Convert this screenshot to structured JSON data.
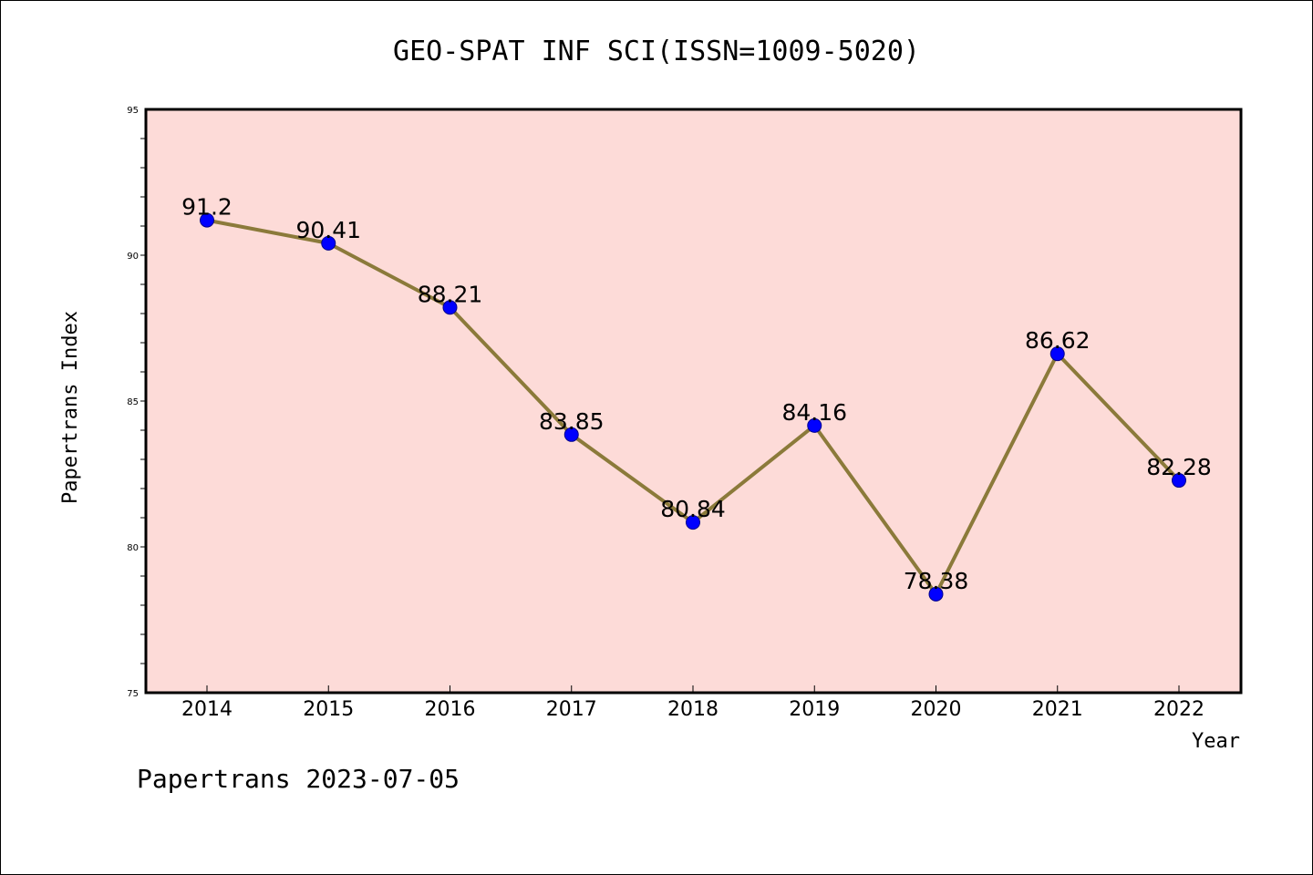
{
  "chart_data": {
    "type": "line",
    "title": "GEO-SPAT INF SCI(ISSN=1009-5020)",
    "xlabel": "Year",
    "ylabel": "Papertrans Index",
    "categories": [
      "2014",
      "2015",
      "2016",
      "2017",
      "2018",
      "2019",
      "2020",
      "2021",
      "2022"
    ],
    "values": [
      91.2,
      90.41,
      88.21,
      83.85,
      80.84,
      84.16,
      78.38,
      86.62,
      82.28
    ],
    "data_labels": [
      "91.2",
      "90.41",
      "88.21",
      "83.85",
      "80.84",
      "84.16",
      "78.38",
      "86.62",
      "82.28"
    ],
    "ylim": [
      75,
      95
    ],
    "yticks": [
      75,
      80,
      85,
      90,
      95
    ],
    "grid": false,
    "colors": {
      "line": "#8b7a3a",
      "marker": "#0000ff",
      "plot_background": "#fddbd8"
    }
  },
  "footer": "Papertrans 2023-07-05"
}
